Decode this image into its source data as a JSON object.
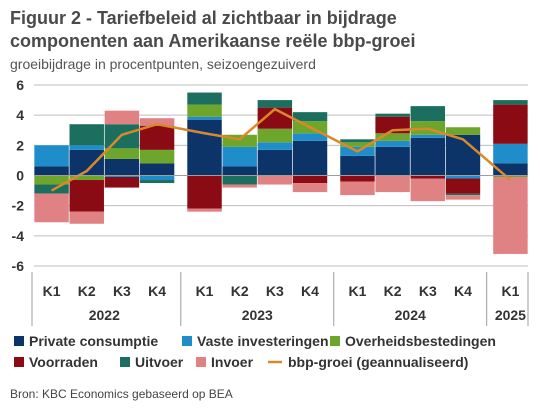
{
  "title_line1": "Figuur 2 - Tariefbeleid al zichtbaar in bijdrage",
  "title_line2": "componenten aan Amerikaanse reële bbp-groei",
  "subtitle": "groeibijdrage in procentpunten, seizoengezuiverd",
  "source": "Bron: KBC Economics gebaseerd op BEA",
  "colors": {
    "private_consumption": "#0d3469",
    "fixed_investment": "#1f8dc9",
    "government": "#6ea62c",
    "inventories": "#8b0b14",
    "exports": "#1c6e5e",
    "imports": "#e08283",
    "gdp": "#d9892b"
  },
  "chart_data": {
    "type": "bar",
    "stacked": true,
    "title": "Figuur 2 - Tariefbeleid al zichtbaar in bijdrage componenten aan Amerikaanse reële bbp-groei",
    "subtitle": "groeibijdrage in procentpunten, seizoengezuiverd",
    "ylim": [
      -6,
      6
    ],
    "yticks": [
      -6,
      -4,
      -2,
      0,
      2,
      4,
      6
    ],
    "grid": true,
    "legend_position": "bottom",
    "groups": [
      {
        "label": "2022",
        "quarters": [
          "K1",
          "K2",
          "K3",
          "K4"
        ]
      },
      {
        "label": "2023",
        "quarters": [
          "K1",
          "K2",
          "K3",
          "K4"
        ]
      },
      {
        "label": "2024",
        "quarters": [
          "K1",
          "K2",
          "K3",
          "K4"
        ]
      },
      {
        "label": "2025",
        "quarters": [
          "K1"
        ]
      }
    ],
    "categories": [
      "2022 K1",
      "2022 K2",
      "2022 K3",
      "2022 K4",
      "2023 K1",
      "2023 K2",
      "2023 K3",
      "2023 K4",
      "2024 K1",
      "2024 K2",
      "2024 K3",
      "2024 K4",
      "2025 K1"
    ],
    "series": [
      {
        "name": "Private consumptie",
        "key": "private_consumption",
        "kind": "bar",
        "values": [
          0.6,
          1.7,
          1.1,
          0.8,
          3.7,
          0.6,
          1.7,
          2.3,
          1.3,
          1.9,
          2.5,
          2.7,
          0.8
        ]
      },
      {
        "name": "Vaste investeringen",
        "key": "fixed_investment",
        "kind": "bar",
        "values": [
          1.4,
          0.3,
          -0.1,
          -0.3,
          0.2,
          1.3,
          0.5,
          0.5,
          0.6,
          0.4,
          0.2,
          -0.2,
          1.3
        ]
      },
      {
        "name": "Overheidsbestedingen",
        "key": "government",
        "kind": "bar",
        "values": [
          -0.6,
          -0.3,
          0.7,
          0.9,
          0.8,
          0.8,
          0.9,
          0.8,
          0.3,
          0.5,
          0.9,
          0.5,
          -0.1
        ]
      },
      {
        "name": "Voorraden",
        "key": "inventories",
        "kind": "bar",
        "values": [
          0.0,
          -2.1,
          -0.7,
          1.6,
          -2.2,
          0.0,
          1.4,
          -0.5,
          -0.4,
          1.1,
          -0.2,
          -1.0,
          2.6
        ]
      },
      {
        "name": "Uitvoer",
        "key": "exports",
        "kind": "bar",
        "values": [
          -0.6,
          1.4,
          1.6,
          -0.2,
          0.8,
          -0.6,
          0.5,
          0.6,
          0.2,
          0.2,
          1.0,
          -0.1,
          0.3
        ]
      },
      {
        "name": "Invoer",
        "key": "imports",
        "kind": "bar",
        "values": [
          -1.9,
          -0.8,
          0.9,
          0.5,
          -0.2,
          -0.2,
          -0.6,
          -0.6,
          -0.9,
          -1.1,
          -1.5,
          -0.3,
          -5.1
        ]
      },
      {
        "name": "bbp-groei (geannualiseerd)",
        "key": "gdp",
        "kind": "line",
        "values": [
          -1.0,
          0.3,
          2.7,
          3.4,
          2.8,
          2.4,
          4.4,
          3.2,
          1.6,
          3.0,
          3.1,
          2.4,
          -0.3
        ]
      }
    ]
  }
}
